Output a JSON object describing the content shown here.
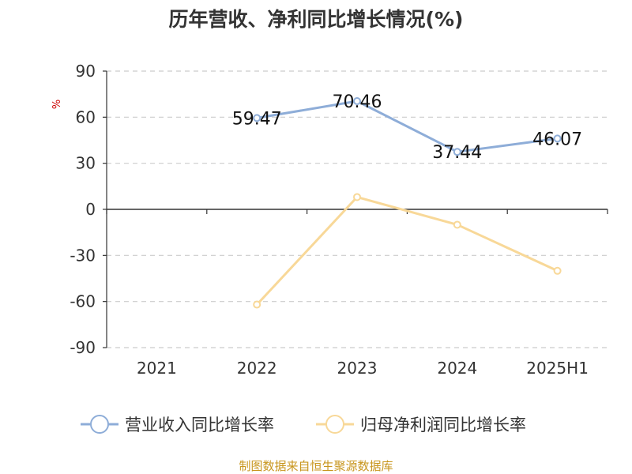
{
  "chart_data": {
    "type": "line",
    "title": "历年营收、净利同比增长情况(%)",
    "ylabel": "%",
    "categories": [
      "2021",
      "2022",
      "2023",
      "2024",
      "2025H1"
    ],
    "ylim": [
      -90,
      90
    ],
    "yticks": [
      90,
      60,
      30,
      0,
      -30,
      -60,
      -90
    ],
    "grid": true,
    "legend_position": "bottom",
    "series": [
      {
        "name": "营业收入同比增长率",
        "color": "#8eadd8",
        "values": [
          null,
          59.47,
          70.46,
          37.44,
          46.07
        ],
        "data_labels": [
          null,
          "59.47",
          "70.46",
          "37.44",
          "46.07"
        ]
      },
      {
        "name": "归母净利润同比增长率",
        "color": "#f8d898",
        "values": [
          null,
          -62,
          8,
          -10,
          -40
        ],
        "data_labels": null
      }
    ]
  },
  "footer": {
    "source": "制图数据来自恒生聚源数据库"
  }
}
